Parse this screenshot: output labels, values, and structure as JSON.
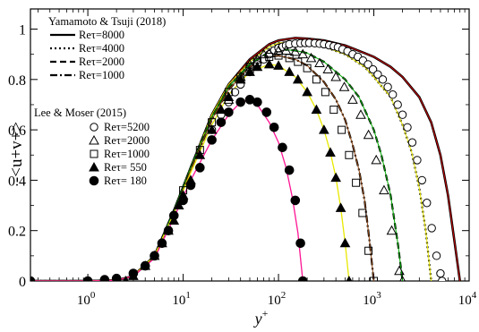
{
  "chart_data": {
    "type": "line",
    "title": "",
    "xlabel": "y",
    "xlabel_sup": "+",
    "ylabel": "-<u+v+>",
    "xscale": "log",
    "xlim": [
      0.25,
      10000
    ],
    "ylim": [
      0,
      1.08
    ],
    "grid": false,
    "legend_placement": "top-left",
    "x_ticks": [
      {
        "value": 1,
        "base": "10",
        "exp": "0"
      },
      {
        "value": 10,
        "base": "10",
        "exp": "1"
      },
      {
        "value": 100,
        "base": "10",
        "exp": "2"
      },
      {
        "value": 1000,
        "base": "10",
        "exp": "3"
      },
      {
        "value": 10000,
        "base": "10",
        "exp": "4"
      }
    ],
    "y_ticks": [
      {
        "value": 0,
        "label": "0"
      },
      {
        "value": 0.2,
        "label": "0.2"
      },
      {
        "value": 0.4,
        "label": "0.4"
      },
      {
        "value": 0.6,
        "label": "0.6"
      },
      {
        "value": 0.8,
        "label": "0.8"
      },
      {
        "value": 1,
        "label": "1"
      }
    ],
    "legend_groups": [
      {
        "title": "Yamamoto & Tsuji (2018)",
        "entries": [
          "Reτ=8000",
          "Reτ=4000",
          "Reτ=2000",
          "Reτ=1000"
        ]
      },
      {
        "title": "Lee & Moser (2015)",
        "entries": [
          "Reτ=5200",
          "Reτ=2000",
          "Reτ=1000",
          "Reτ= 550",
          "Reτ= 180"
        ]
      }
    ],
    "series": [
      {
        "name": "Reτ=8000",
        "group": "Yamamoto & Tsuji (2018)",
        "style": "solid",
        "color": "#000000",
        "overlay_color": "#cc0000",
        "x": [
          0.25,
          1,
          2,
          3,
          5,
          8,
          12,
          20,
          30,
          50,
          80,
          100,
          150,
          200,
          300,
          500,
          800,
          1000,
          1500,
          2000,
          3000,
          4000,
          5000,
          6000,
          7000,
          8000
        ],
        "y": [
          0,
          0,
          0.003,
          0.02,
          0.1,
          0.28,
          0.45,
          0.66,
          0.78,
          0.88,
          0.94,
          0.955,
          0.965,
          0.962,
          0.955,
          0.935,
          0.905,
          0.89,
          0.85,
          0.81,
          0.73,
          0.63,
          0.5,
          0.34,
          0.16,
          0
        ]
      },
      {
        "name": "Reτ=4000",
        "group": "Yamamoto & Tsuji (2018)",
        "style": "dotted",
        "color": "#000000",
        "overlay_color": "#e8e800",
        "x": [
          0.25,
          1,
          2,
          3,
          5,
          8,
          12,
          20,
          30,
          50,
          80,
          100,
          150,
          200,
          300,
          500,
          800,
          1000,
          1500,
          2000,
          2500,
          3000,
          3500,
          4000
        ],
        "y": [
          0,
          0,
          0.003,
          0.02,
          0.1,
          0.28,
          0.45,
          0.66,
          0.78,
          0.87,
          0.93,
          0.945,
          0.95,
          0.945,
          0.93,
          0.9,
          0.85,
          0.81,
          0.73,
          0.62,
          0.51,
          0.37,
          0.2,
          0
        ]
      },
      {
        "name": "Reτ=2000",
        "group": "Yamamoto & Tsuji (2018)",
        "style": "dashed",
        "color": "#000000",
        "overlay_color": "#00aa00",
        "x": [
          0.25,
          1,
          2,
          3,
          5,
          8,
          12,
          20,
          30,
          50,
          80,
          100,
          150,
          200,
          300,
          500,
          700,
          1000,
          1200,
          1500,
          1800,
          2000
        ],
        "y": [
          0,
          0,
          0.003,
          0.02,
          0.1,
          0.28,
          0.45,
          0.65,
          0.77,
          0.86,
          0.91,
          0.92,
          0.915,
          0.905,
          0.87,
          0.8,
          0.73,
          0.6,
          0.5,
          0.34,
          0.14,
          0
        ]
      },
      {
        "name": "Reτ=1000",
        "group": "Yamamoto & Tsuji (2018)",
        "style": "dashdot",
        "color": "#000000",
        "overlay_color": "#8b4513",
        "x": [
          0.25,
          1,
          2,
          3,
          5,
          8,
          12,
          20,
          30,
          50,
          80,
          100,
          150,
          200,
          300,
          400,
          500,
          600,
          700,
          800,
          900,
          1000
        ],
        "y": [
          0,
          0,
          0.003,
          0.02,
          0.1,
          0.27,
          0.44,
          0.64,
          0.76,
          0.85,
          0.89,
          0.895,
          0.88,
          0.855,
          0.79,
          0.72,
          0.64,
          0.54,
          0.44,
          0.32,
          0.16,
          0
        ]
      },
      {
        "name": "Reτ=550",
        "group": "",
        "style": "solid",
        "color": "#e8e800",
        "x": [
          0.25,
          1,
          2,
          3,
          5,
          8,
          12,
          20,
          30,
          50,
          80,
          100,
          150,
          200,
          250,
          300,
          350,
          400,
          450,
          500,
          550
        ],
        "y": [
          0,
          0,
          0.003,
          0.02,
          0.1,
          0.27,
          0.43,
          0.62,
          0.74,
          0.83,
          0.86,
          0.855,
          0.81,
          0.75,
          0.68,
          0.6,
          0.51,
          0.41,
          0.29,
          0.15,
          0
        ]
      },
      {
        "name": "Reτ=180",
        "group": "",
        "style": "solid",
        "color": "#ff1493",
        "x": [
          0.25,
          1,
          2,
          3,
          5,
          8,
          12,
          20,
          30,
          40,
          50,
          60,
          80,
          100,
          120,
          140,
          160,
          180
        ],
        "y": [
          0,
          0,
          0.003,
          0.02,
          0.09,
          0.25,
          0.4,
          0.56,
          0.66,
          0.71,
          0.72,
          0.7,
          0.63,
          0.55,
          0.45,
          0.33,
          0.19,
          0
        ]
      }
    ],
    "markers": [
      {
        "name": "Reτ=5200",
        "group": "Lee & Moser (2015)",
        "shape": "circle-open",
        "color": "#0000ff",
        "x": [
          20,
          25,
          30,
          35,
          40,
          50,
          60,
          70,
          80,
          90,
          100,
          110,
          120,
          130,
          150,
          170,
          190,
          210,
          240,
          270,
          300,
          340,
          380,
          420,
          470,
          530,
          600,
          680,
          770,
          870,
          980,
          1100,
          1240,
          1400,
          1580,
          1780,
          2000,
          2250,
          2530,
          2850,
          3200,
          3600,
          4050,
          4550,
          5000,
          5200
        ],
        "y": [
          0.6,
          0.66,
          0.71,
          0.75,
          0.78,
          0.83,
          0.86,
          0.88,
          0.9,
          0.915,
          0.925,
          0.93,
          0.935,
          0.94,
          0.942,
          0.944,
          0.945,
          0.945,
          0.944,
          0.942,
          0.94,
          0.936,
          0.932,
          0.928,
          0.92,
          0.912,
          0.9,
          0.89,
          0.875,
          0.86,
          0.84,
          0.82,
          0.8,
          0.77,
          0.74,
          0.7,
          0.66,
          0.61,
          0.55,
          0.48,
          0.4,
          0.31,
          0.21,
          0.1,
          0.03,
          0
        ]
      },
      {
        "name": "Reτ=2000",
        "group": "Lee & Moser (2015)",
        "shape": "triangle-open",
        "color": "#000000",
        "x": [
          30,
          40,
          50,
          60,
          70,
          80,
          100,
          120,
          150,
          180,
          220,
          270,
          330,
          400,
          490,
          600,
          730,
          880,
          1060,
          1280,
          1540,
          1850,
          2000
        ],
        "y": [
          0.72,
          0.81,
          0.86,
          0.88,
          0.9,
          0.905,
          0.915,
          0.915,
          0.91,
          0.9,
          0.885,
          0.865,
          0.84,
          0.81,
          0.77,
          0.72,
          0.66,
          0.58,
          0.48,
          0.36,
          0.2,
          0.04,
          0
        ]
      },
      {
        "name": "Reτ=1000",
        "group": "Lee & Moser (2015)",
        "shape": "square-open",
        "color": "#000000",
        "x": [
          10,
          15,
          20,
          30,
          40,
          50,
          60,
          80,
          100,
          130,
          160,
          200,
          250,
          310,
          380,
          460,
          550,
          650,
          760,
          880,
          1000
        ],
        "y": [
          0.36,
          0.52,
          0.63,
          0.75,
          0.81,
          0.85,
          0.87,
          0.89,
          0.895,
          0.885,
          0.87,
          0.845,
          0.8,
          0.75,
          0.68,
          0.6,
          0.5,
          0.39,
          0.27,
          0.12,
          0
        ]
      },
      {
        "name": "Reτ= 550",
        "group": "Lee & Moser (2015)",
        "shape": "triangle-filled",
        "color": "#000000",
        "x": [
          2.5,
          3,
          4,
          5,
          6,
          7,
          8,
          9,
          10,
          12,
          15,
          20,
          25,
          30,
          40,
          50,
          60,
          80,
          100,
          130,
          160,
          200,
          250,
          300,
          350,
          400,
          450,
          500,
          550
        ],
        "y": [
          0,
          0.02,
          0.06,
          0.1,
          0.15,
          0.2,
          0.24,
          0.3,
          0.34,
          0.4,
          0.5,
          0.6,
          0.68,
          0.73,
          0.8,
          0.83,
          0.85,
          0.86,
          0.855,
          0.83,
          0.8,
          0.75,
          0.68,
          0.6,
          0.51,
          0.41,
          0.29,
          0.15,
          0
        ]
      },
      {
        "name": "Reτ= 180",
        "group": "Lee & Moser (2015)",
        "shape": "circle-filled",
        "color": "#000000",
        "x": [
          0.25,
          1,
          1.5,
          2,
          3,
          4,
          5,
          6,
          7,
          8,
          10,
          12,
          15,
          20,
          25,
          30,
          40,
          50,
          60,
          75,
          90,
          110,
          130,
          150,
          170,
          180
        ],
        "y": [
          0,
          0,
          0.005,
          0.01,
          0.03,
          0.06,
          0.1,
          0.15,
          0.2,
          0.26,
          0.32,
          0.38,
          0.45,
          0.56,
          0.63,
          0.67,
          0.71,
          0.72,
          0.71,
          0.67,
          0.61,
          0.53,
          0.44,
          0.32,
          0.15,
          0
        ]
      }
    ]
  }
}
